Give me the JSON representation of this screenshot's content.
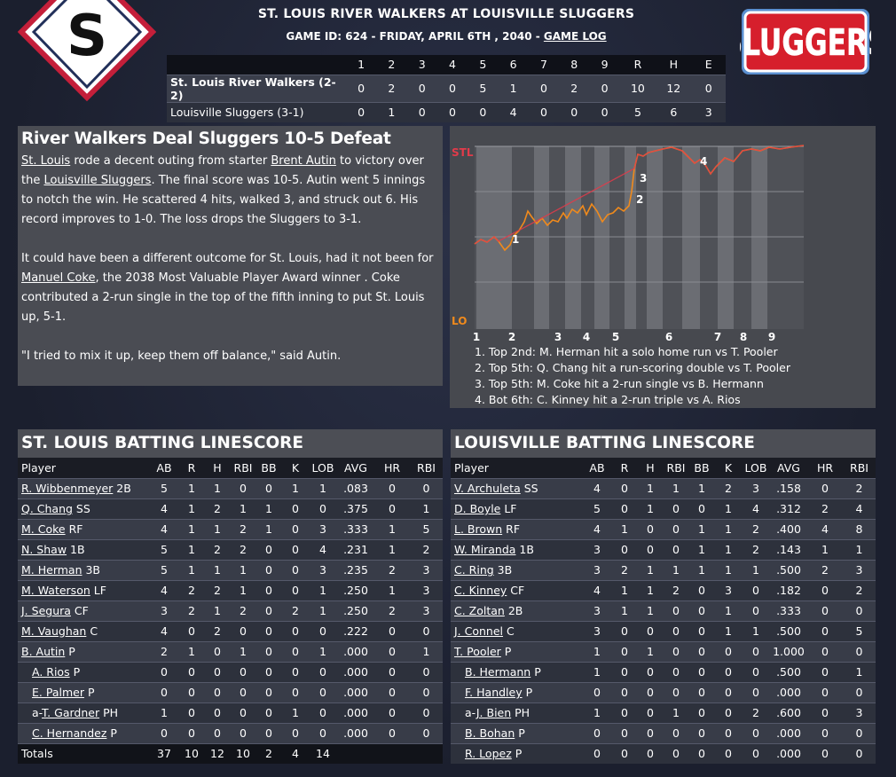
{
  "header": {
    "title": "ST. LOUIS RIVER WALKERS AT LOUISVILLE SLUGGERS",
    "game_info": "GAME ID: 624 - FRIDAY, APRIL 6TH , 2040 - ",
    "game_log_link": "GAME LOG",
    "left_logo_letter": "S",
    "right_logo_text": "SLUGGERS"
  },
  "linescore": {
    "columns": [
      "1",
      "2",
      "3",
      "4",
      "5",
      "6",
      "7",
      "8",
      "9",
      "R",
      "H",
      "E"
    ],
    "teams": [
      {
        "name": "St. Louis River Walkers (2-2)",
        "values": [
          "0",
          "2",
          "0",
          "0",
          "5",
          "1",
          "0",
          "2",
          "0",
          "10",
          "12",
          "0"
        ]
      },
      {
        "name": "Louisville Sluggers (3-1)",
        "values": [
          "0",
          "1",
          "0",
          "0",
          "0",
          "4",
          "0",
          "0",
          "0",
          "5",
          "6",
          "3"
        ]
      }
    ]
  },
  "story": {
    "headline": "River Walkers Deal Sluggers 10-5 Defeat",
    "p1": [
      {
        "t": "St. Louis",
        "u": true
      },
      {
        "t": " rode a decent outing from starter ",
        "u": false
      },
      {
        "t": "Brent Autin",
        "u": true
      },
      {
        "t": " to victory over the ",
        "u": false
      },
      {
        "t": "Louisville Sluggers",
        "u": true
      },
      {
        "t": ". The final score was 10-5. Autin went 5 innings to notch the win. He scattered 4 hits, walked 3, and struck out 6. His record improves to 1-0. The loss drops the Sluggers to 3-1.",
        "u": false
      }
    ],
    "p2": [
      {
        "t": "It could have been a different outcome for St. Louis, had it not been for ",
        "u": false
      },
      {
        "t": "Manuel Coke",
        "u": true
      },
      {
        "t": ", the 2038 Most Valuable Player Award winner . Coke contributed a 2-run single in the top of the fifth inning to put St. Louis up, 5-1.",
        "u": false
      }
    ],
    "p3": "\"I tried to mix it up, keep them off balance,\" said Autin."
  },
  "win_prob": {
    "top_label": "STL",
    "bottom_label": "LO",
    "innings": [
      "1",
      "2",
      "3",
      "4",
      "5",
      "6",
      "7",
      "8",
      "9"
    ],
    "markers": [
      "1",
      "2",
      "3",
      "4"
    ],
    "colors": {
      "top": "#e23b4a",
      "bottom": "#f08a1c"
    },
    "events": [
      "1. Top 2nd: M. Herman hit a solo home run vs T. Pooler",
      "2. Top 5th: Q. Chang hit a run-scoring double vs T. Pooler",
      "3. Top 5th: M. Coke hit a 2-run single vs B. Hermann",
      "4. Bot 6th: C. Kinney hit a 2-run triple vs A. Rios"
    ]
  },
  "batting_columns": [
    "Player",
    "AB",
    "R",
    "H",
    "RBI",
    "BB",
    "K",
    "LOB",
    "AVG",
    "HR",
    "RBI"
  ],
  "stl_batting": {
    "title": "ST. LOUIS BATTING LINESCORE",
    "rows": [
      {
        "prefix": "",
        "name": "R. Wibbenmeyer",
        "pos": " 2B",
        "sub": false,
        "stats": [
          "5",
          "1",
          "1",
          "0",
          "0",
          "1",
          "1",
          ".083",
          "0",
          "0"
        ]
      },
      {
        "prefix": "",
        "name": "Q. Chang",
        "pos": " SS",
        "sub": false,
        "stats": [
          "4",
          "1",
          "2",
          "1",
          "1",
          "0",
          "0",
          ".375",
          "0",
          "1"
        ]
      },
      {
        "prefix": "",
        "name": "M. Coke",
        "pos": " RF",
        "sub": false,
        "stats": [
          "4",
          "1",
          "1",
          "2",
          "1",
          "0",
          "3",
          ".333",
          "1",
          "5"
        ]
      },
      {
        "prefix": "",
        "name": "N. Shaw",
        "pos": " 1B",
        "sub": false,
        "stats": [
          "5",
          "1",
          "2",
          "2",
          "0",
          "0",
          "4",
          ".231",
          "1",
          "2"
        ]
      },
      {
        "prefix": "",
        "name": "M. Herman",
        "pos": " 3B",
        "sub": false,
        "stats": [
          "5",
          "1",
          "1",
          "1",
          "0",
          "0",
          "3",
          ".235",
          "2",
          "3"
        ]
      },
      {
        "prefix": "",
        "name": "M. Waterson",
        "pos": " LF",
        "sub": false,
        "stats": [
          "4",
          "2",
          "2",
          "1",
          "0",
          "0",
          "1",
          ".250",
          "1",
          "3"
        ]
      },
      {
        "prefix": "",
        "name": "J. Segura",
        "pos": " CF",
        "sub": false,
        "stats": [
          "3",
          "2",
          "1",
          "2",
          "0",
          "2",
          "1",
          ".250",
          "2",
          "3"
        ]
      },
      {
        "prefix": "",
        "name": "M. Vaughan",
        "pos": " C",
        "sub": false,
        "stats": [
          "4",
          "0",
          "2",
          "0",
          "0",
          "0",
          "0",
          ".222",
          "0",
          "0"
        ]
      },
      {
        "prefix": "",
        "name": "B. Autin",
        "pos": " P",
        "sub": false,
        "stats": [
          "2",
          "1",
          "0",
          "1",
          "0",
          "0",
          "1",
          ".000",
          "0",
          "1"
        ]
      },
      {
        "prefix": "",
        "name": "A. Rios",
        "pos": " P",
        "sub": true,
        "stats": [
          "0",
          "0",
          "0",
          "0",
          "0",
          "0",
          "0",
          ".000",
          "0",
          "0"
        ]
      },
      {
        "prefix": "",
        "name": "E. Palmer",
        "pos": " P",
        "sub": true,
        "stats": [
          "0",
          "0",
          "0",
          "0",
          "0",
          "0",
          "0",
          ".000",
          "0",
          "0"
        ]
      },
      {
        "prefix": "a-",
        "name": "T. Gardner",
        "pos": " PH",
        "sub": true,
        "stats": [
          "1",
          "0",
          "0",
          "0",
          "0",
          "1",
          "0",
          ".000",
          "0",
          "0"
        ]
      },
      {
        "prefix": "",
        "name": "C. Hernandez",
        "pos": " P",
        "sub": true,
        "stats": [
          "0",
          "0",
          "0",
          "0",
          "0",
          "0",
          "0",
          ".000",
          "0",
          "0"
        ]
      }
    ],
    "totals": {
      "label": "Totals",
      "stats": [
        "37",
        "10",
        "12",
        "10",
        "2",
        "4",
        "14",
        "",
        "",
        ""
      ]
    }
  },
  "lou_batting": {
    "title": "LOUISVILLE BATTING LINESCORE",
    "rows": [
      {
        "prefix": "",
        "name": "V. Archuleta",
        "pos": " SS",
        "sub": false,
        "stats": [
          "4",
          "0",
          "1",
          "1",
          "1",
          "2",
          "3",
          ".158",
          "0",
          "2"
        ]
      },
      {
        "prefix": "",
        "name": "D. Boyle",
        "pos": " LF",
        "sub": false,
        "stats": [
          "5",
          "0",
          "1",
          "0",
          "0",
          "1",
          "4",
          ".312",
          "2",
          "4"
        ]
      },
      {
        "prefix": "",
        "name": "L. Brown",
        "pos": " RF",
        "sub": false,
        "stats": [
          "4",
          "1",
          "0",
          "0",
          "1",
          "1",
          "2",
          ".400",
          "4",
          "8"
        ]
      },
      {
        "prefix": "",
        "name": "W. Miranda",
        "pos": " 1B",
        "sub": false,
        "stats": [
          "3",
          "0",
          "0",
          "0",
          "1",
          "1",
          "2",
          ".143",
          "1",
          "1"
        ]
      },
      {
        "prefix": "",
        "name": "C. Ring",
        "pos": " 3B",
        "sub": false,
        "stats": [
          "3",
          "2",
          "1",
          "1",
          "1",
          "1",
          "1",
          ".500",
          "2",
          "3"
        ]
      },
      {
        "prefix": "",
        "name": "C. Kinney",
        "pos": " CF",
        "sub": false,
        "stats": [
          "4",
          "1",
          "1",
          "2",
          "0",
          "3",
          "0",
          ".182",
          "0",
          "2"
        ]
      },
      {
        "prefix": "",
        "name": "C. Zoltan",
        "pos": " 2B",
        "sub": false,
        "stats": [
          "3",
          "1",
          "1",
          "0",
          "0",
          "1",
          "0",
          ".333",
          "0",
          "0"
        ]
      },
      {
        "prefix": "",
        "name": "J. Connel",
        "pos": " C",
        "sub": false,
        "stats": [
          "3",
          "0",
          "0",
          "0",
          "0",
          "1",
          "1",
          ".500",
          "0",
          "5"
        ]
      },
      {
        "prefix": "",
        "name": "T. Pooler",
        "pos": " P",
        "sub": false,
        "stats": [
          "1",
          "0",
          "1",
          "0",
          "0",
          "0",
          "0",
          "1.000",
          "0",
          "0"
        ]
      },
      {
        "prefix": "",
        "name": "B. Hermann",
        "pos": " P",
        "sub": true,
        "stats": [
          "1",
          "0",
          "0",
          "0",
          "0",
          "0",
          "0",
          ".500",
          "0",
          "1"
        ]
      },
      {
        "prefix": "",
        "name": "F. Handley",
        "pos": " P",
        "sub": true,
        "stats": [
          "0",
          "0",
          "0",
          "0",
          "0",
          "0",
          "0",
          ".000",
          "0",
          "0"
        ]
      },
      {
        "prefix": "a-",
        "name": "J. Bien",
        "pos": " PH",
        "sub": true,
        "stats": [
          "1",
          "0",
          "0",
          "1",
          "0",
          "0",
          "2",
          ".600",
          "0",
          "3"
        ]
      },
      {
        "prefix": "",
        "name": "B. Bohan",
        "pos": " P",
        "sub": true,
        "stats": [
          "0",
          "0",
          "0",
          "0",
          "0",
          "0",
          "0",
          ".000",
          "0",
          "0"
        ]
      },
      {
        "prefix": "",
        "name": "R. Lopez",
        "pos": " P",
        "sub": true,
        "stats": [
          "0",
          "0",
          "0",
          "0",
          "0",
          "0",
          "0",
          ".000",
          "0",
          "0"
        ]
      }
    ]
  }
}
